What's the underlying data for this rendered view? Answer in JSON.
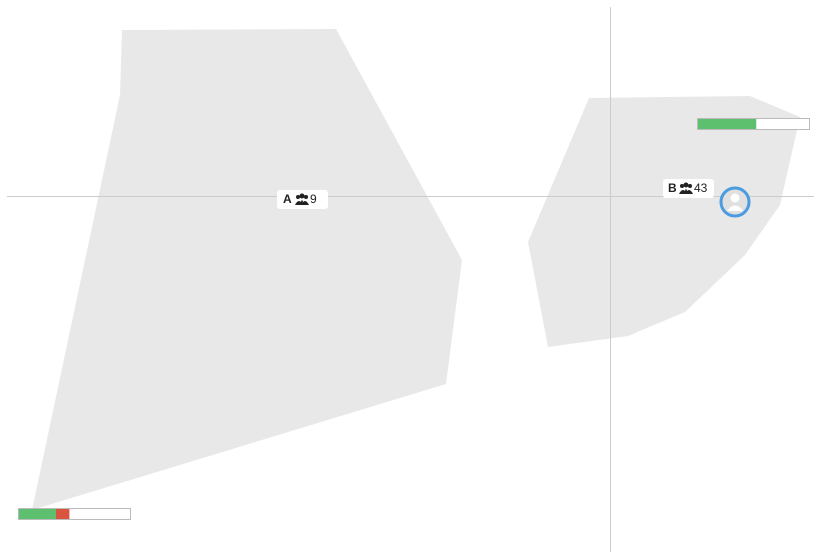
{
  "clusters": [
    {
      "label": "A",
      "count": "9",
      "bar": {
        "green": 33,
        "red": 12
      }
    },
    {
      "label": "B",
      "count": "43",
      "bar": {
        "green": 52,
        "red": 0
      }
    }
  ]
}
